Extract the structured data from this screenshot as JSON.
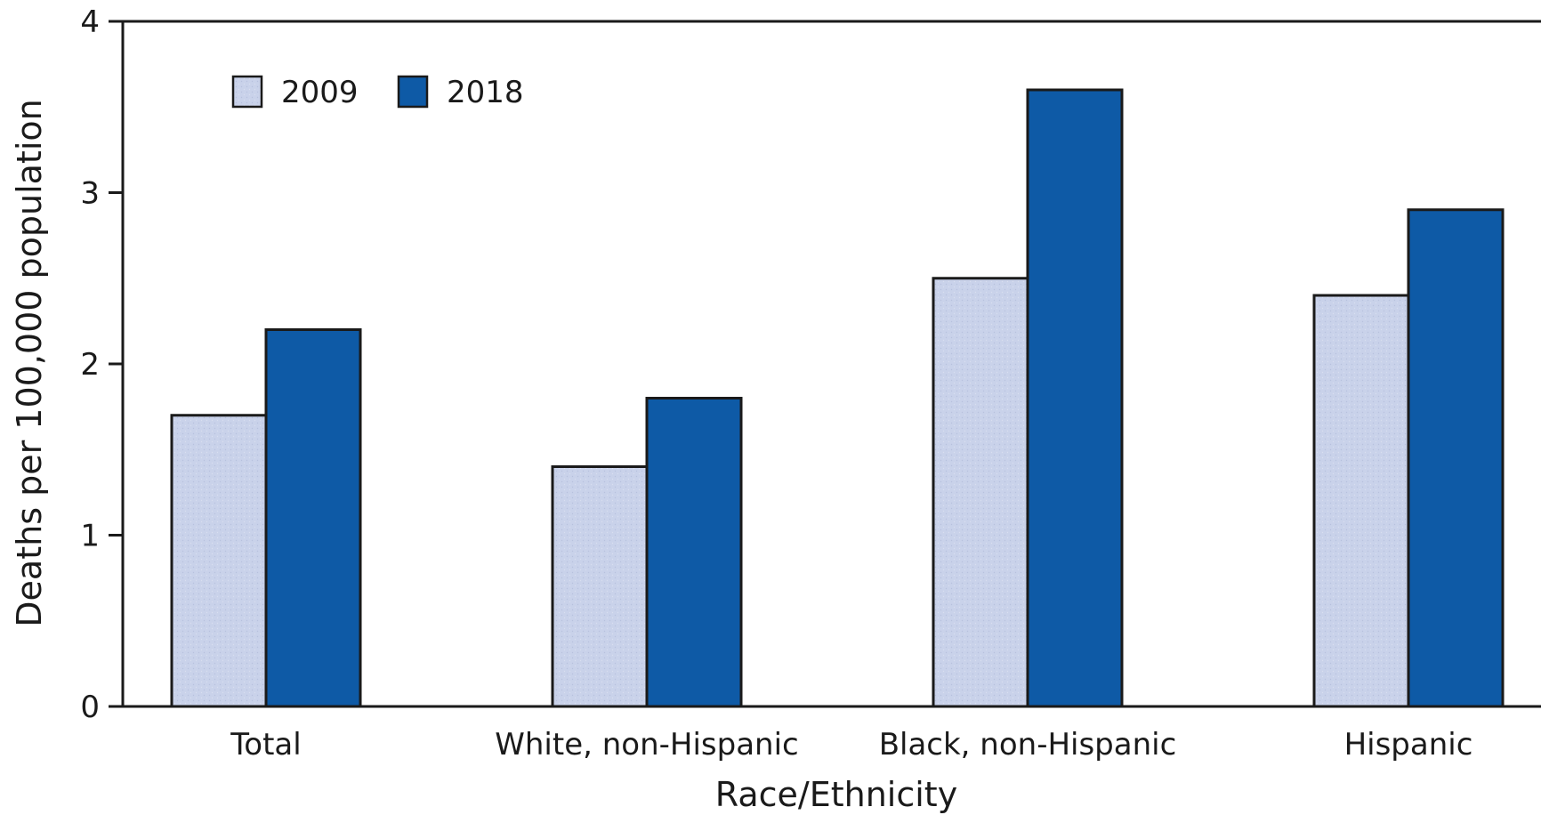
{
  "chart_data": {
    "type": "bar",
    "title": "",
    "xlabel": "Race/Ethnicity",
    "ylabel": "Deaths per 100,000 population",
    "categories": [
      "Total",
      "White, non-Hispanic",
      "Black, non-Hispanic",
      "Hispanic"
    ],
    "series": [
      {
        "name": "2009",
        "color": "#c9d2ea",
        "values": [
          1.7,
          1.4,
          2.5,
          2.4
        ]
      },
      {
        "name": "2018",
        "color": "#0e5aa6",
        "values": [
          2.2,
          1.8,
          3.6,
          2.9
        ]
      }
    ],
    "ylim": [
      0,
      4
    ],
    "yticks": [
      0,
      1,
      2,
      3,
      4
    ],
    "ytick_labels": [
      "0",
      "1",
      "2",
      "3",
      "4"
    ],
    "grid": false,
    "legend_position": "top-left"
  }
}
